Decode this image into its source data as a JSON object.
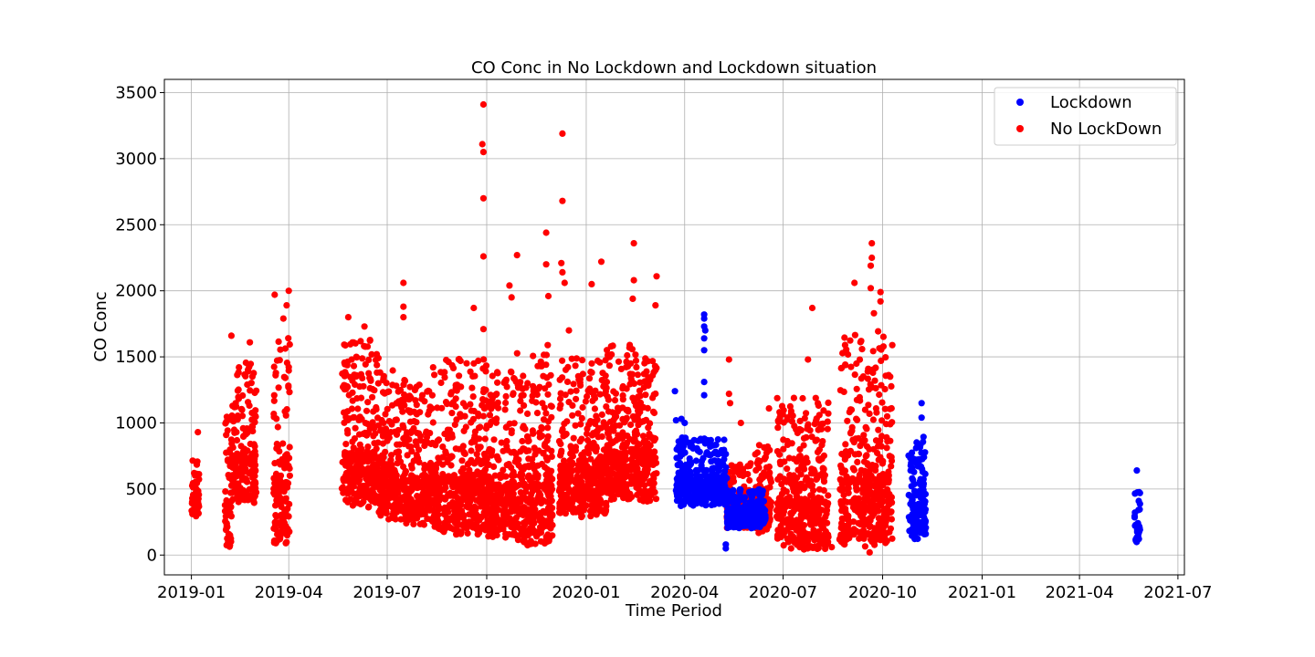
{
  "chart_data": {
    "type": "scatter",
    "title": "CO Conc in No Lockdown and Lockdown situation",
    "xlabel": "Time Period",
    "ylabel": "CO Conc",
    "x_type": "date",
    "xlim": [
      "2018-12-07",
      "2021-07-07"
    ],
    "ylim": [
      -150,
      3600
    ],
    "x_ticks": [
      "2019-01",
      "2019-04",
      "2019-07",
      "2019-10",
      "2020-01",
      "2020-04",
      "2020-07",
      "2020-10",
      "2021-01",
      "2021-04",
      "2021-07"
    ],
    "y_ticks": [
      0,
      500,
      1000,
      1500,
      2000,
      2500,
      3000,
      3500
    ],
    "grid": true,
    "legend_position": "top-right",
    "series": [
      {
        "name": "Lockdown",
        "color": "#0000ff",
        "clusters": [
          {
            "start": "2020-03-24",
            "end": "2020-05-10",
            "low": 370,
            "high": 900
          },
          {
            "start": "2020-05-10",
            "end": "2020-06-15",
            "low": 200,
            "high": 500
          },
          {
            "start": "2020-10-25",
            "end": "2020-11-10",
            "low": 110,
            "high": 900
          },
          {
            "start": "2021-05-22",
            "end": "2021-05-27",
            "low": 90,
            "high": 520
          }
        ],
        "points": [
          {
            "x": "2020-03-23",
            "y": 1240
          },
          {
            "x": "2020-03-24",
            "y": 1020
          },
          {
            "x": "2020-03-29",
            "y": 1030
          },
          {
            "x": "2020-04-01",
            "y": 1000
          },
          {
            "x": "2020-04-19",
            "y": 1820
          },
          {
            "x": "2020-04-19",
            "y": 1790
          },
          {
            "x": "2020-04-19",
            "y": 1730
          },
          {
            "x": "2020-04-20",
            "y": 1700
          },
          {
            "x": "2020-04-19",
            "y": 1640
          },
          {
            "x": "2020-04-19",
            "y": 1550
          },
          {
            "x": "2020-04-19",
            "y": 1310
          },
          {
            "x": "2020-04-19",
            "y": 1210
          },
          {
            "x": "2020-05-09",
            "y": 80
          },
          {
            "x": "2020-05-09",
            "y": 50
          },
          {
            "x": "2020-06-10",
            "y": 480
          },
          {
            "x": "2020-11-06",
            "y": 1150
          },
          {
            "x": "2020-11-06",
            "y": 1040
          },
          {
            "x": "2020-11-01",
            "y": 810
          },
          {
            "x": "2021-05-24",
            "y": 640
          }
        ]
      },
      {
        "name": "No LockDown",
        "color": "#ff0000",
        "clusters": [
          {
            "start": "2019-01-01",
            "end": "2019-01-08",
            "low": 260,
            "high": 780
          },
          {
            "start": "2019-02-01",
            "end": "2019-02-07",
            "low": 40,
            "high": 1100
          },
          {
            "start": "2019-02-07",
            "end": "2019-03-02",
            "low": 380,
            "high": 1500
          },
          {
            "start": "2019-03-18",
            "end": "2019-04-02",
            "low": 60,
            "high": 1650
          },
          {
            "start": "2019-05-20",
            "end": "2019-06-23",
            "low": 350,
            "high": 1650
          },
          {
            "start": "2019-06-23",
            "end": "2019-07-18",
            "low": 250,
            "high": 1400
          },
          {
            "start": "2019-07-18",
            "end": "2019-08-12",
            "low": 220,
            "high": 1300
          },
          {
            "start": "2019-08-12",
            "end": "2019-10-02",
            "low": 150,
            "high": 1500
          },
          {
            "start": "2019-10-02",
            "end": "2019-10-28",
            "low": 120,
            "high": 1400
          },
          {
            "start": "2019-10-28",
            "end": "2019-12-01",
            "low": 60,
            "high": 1600
          },
          {
            "start": "2019-12-07",
            "end": "2020-01-20",
            "low": 280,
            "high": 1500
          },
          {
            "start": "2020-01-20",
            "end": "2020-03-06",
            "low": 400,
            "high": 1600
          },
          {
            "start": "2020-05-10",
            "end": "2020-06-01",
            "low": 200,
            "high": 700
          },
          {
            "start": "2020-06-05",
            "end": "2020-06-20",
            "low": 160,
            "high": 950
          },
          {
            "start": "2020-06-25",
            "end": "2020-08-12",
            "low": 40,
            "high": 1200
          },
          {
            "start": "2020-08-22",
            "end": "2020-10-10",
            "low": 60,
            "high": 1700
          }
        ],
        "points": [
          {
            "x": "2019-01-07",
            "y": 930
          },
          {
            "x": "2019-02-07",
            "y": 1660
          },
          {
            "x": "2019-02-24",
            "y": 1610
          },
          {
            "x": "2019-03-19",
            "y": 1970
          },
          {
            "x": "2019-03-30",
            "y": 1890
          },
          {
            "x": "2019-04-01",
            "y": 2000
          },
          {
            "x": "2019-03-27",
            "y": 1790
          },
          {
            "x": "2019-05-26",
            "y": 1800
          },
          {
            "x": "2019-06-10",
            "y": 1730
          },
          {
            "x": "2019-07-16",
            "y": 2060
          },
          {
            "x": "2019-07-16",
            "y": 1880
          },
          {
            "x": "2019-07-16",
            "y": 1800
          },
          {
            "x": "2019-09-19",
            "y": 1870
          },
          {
            "x": "2019-09-28",
            "y": 3410
          },
          {
            "x": "2019-09-27",
            "y": 3110
          },
          {
            "x": "2019-09-28",
            "y": 3050
          },
          {
            "x": "2019-09-28",
            "y": 2700
          },
          {
            "x": "2019-09-28",
            "y": 2260
          },
          {
            "x": "2019-09-28",
            "y": 1710
          },
          {
            "x": "2019-10-22",
            "y": 2040
          },
          {
            "x": "2019-10-24",
            "y": 1950
          },
          {
            "x": "2019-10-29",
            "y": 2270
          },
          {
            "x": "2019-11-25",
            "y": 2440
          },
          {
            "x": "2019-11-25",
            "y": 2200
          },
          {
            "x": "2019-11-27",
            "y": 1960
          },
          {
            "x": "2019-12-10",
            "y": 3190
          },
          {
            "x": "2019-12-10",
            "y": 2680
          },
          {
            "x": "2019-12-09",
            "y": 2210
          },
          {
            "x": "2019-12-10",
            "y": 2140
          },
          {
            "x": "2019-12-12",
            "y": 2060
          },
          {
            "x": "2019-12-16",
            "y": 1700
          },
          {
            "x": "2020-01-06",
            "y": 2050
          },
          {
            "x": "2020-01-15",
            "y": 2220
          },
          {
            "x": "2020-02-14",
            "y": 2360
          },
          {
            "x": "2020-02-14",
            "y": 2080
          },
          {
            "x": "2020-02-13",
            "y": 1940
          },
          {
            "x": "2020-03-06",
            "y": 2110
          },
          {
            "x": "2020-03-05",
            "y": 1890
          },
          {
            "x": "2020-05-12",
            "y": 1480
          },
          {
            "x": "2020-05-12",
            "y": 1220
          },
          {
            "x": "2020-05-13",
            "y": 1150
          },
          {
            "x": "2020-05-23",
            "y": 1000
          },
          {
            "x": "2020-06-18",
            "y": 1110
          },
          {
            "x": "2020-07-28",
            "y": 1870
          },
          {
            "x": "2020-07-24",
            "y": 1480
          },
          {
            "x": "2020-09-05",
            "y": 2060
          },
          {
            "x": "2020-09-21",
            "y": 2360
          },
          {
            "x": "2020-09-21",
            "y": 2250
          },
          {
            "x": "2020-09-20",
            "y": 2190
          },
          {
            "x": "2020-09-20",
            "y": 2020
          },
          {
            "x": "2020-09-23",
            "y": 1830
          },
          {
            "x": "2020-09-29",
            "y": 1990
          },
          {
            "x": "2020-09-29",
            "y": 1920
          },
          {
            "x": "2020-10-08",
            "y": 1350
          },
          {
            "x": "2020-10-08",
            "y": 990
          },
          {
            "x": "2020-09-19",
            "y": 20
          },
          {
            "x": "2020-08-15",
            "y": 60
          }
        ]
      }
    ]
  }
}
